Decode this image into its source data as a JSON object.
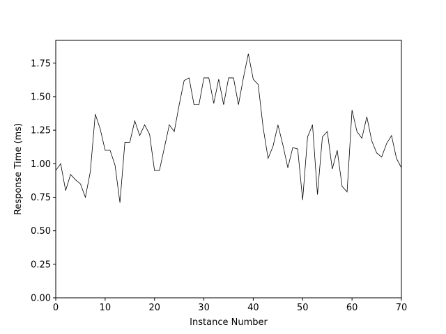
{
  "chart_data": {
    "type": "line",
    "title": "",
    "xlabel": "Instance Number",
    "ylabel": "Response Time (ms)",
    "xlim": [
      0,
      70
    ],
    "ylim": [
      0,
      1.92
    ],
    "xticks": [
      0,
      10,
      20,
      30,
      40,
      50,
      60,
      70
    ],
    "xtick_labels": [
      "0",
      "10",
      "20",
      "30",
      "40",
      "50",
      "60",
      "70"
    ],
    "yticks": [
      0,
      0.25,
      0.5,
      0.75,
      1.0,
      1.25,
      1.5,
      1.75
    ],
    "ytick_labels": [
      "0.00",
      "0.25",
      "0.50",
      "0.75",
      "1.00",
      "1.25",
      "1.50",
      "1.75"
    ],
    "grid": false,
    "legend": "none",
    "line_color": "#000000",
    "series": [
      {
        "x": [
          0,
          1,
          2,
          3,
          4,
          5,
          6,
          7,
          8,
          9,
          10,
          11,
          12,
          13,
          14,
          15,
          16,
          17,
          18,
          19,
          20,
          21,
          22,
          23,
          24,
          25,
          26,
          27,
          28,
          29,
          30,
          31,
          32,
          33,
          34,
          35,
          36,
          37,
          38,
          39,
          40,
          41,
          42,
          43,
          44,
          45,
          46,
          47,
          48,
          49,
          50,
          51,
          52,
          53,
          54,
          55,
          56,
          57,
          58,
          59,
          60,
          61,
          62,
          63,
          64,
          65,
          66,
          67,
          68,
          69,
          70
        ],
        "values": [
          0.95,
          1.0,
          0.8,
          0.92,
          0.88,
          0.85,
          0.75,
          0.94,
          1.37,
          1.26,
          1.1,
          1.1,
          0.99,
          0.71,
          1.16,
          1.16,
          1.32,
          1.21,
          1.29,
          1.22,
          0.95,
          0.95,
          1.12,
          1.29,
          1.24,
          1.44,
          1.62,
          1.64,
          1.44,
          1.44,
          1.64,
          1.64,
          1.45,
          1.63,
          1.44,
          1.64,
          1.64,
          1.44,
          1.64,
          1.82,
          1.63,
          1.59,
          1.27,
          1.04,
          1.13,
          1.29,
          1.14,
          0.97,
          1.12,
          1.11,
          0.73,
          1.2,
          1.29,
          0.77,
          1.2,
          1.24,
          0.96,
          1.1,
          0.83,
          0.79,
          1.4,
          1.24,
          1.19,
          1.35,
          1.17,
          1.08,
          1.05,
          1.15,
          1.21,
          1.04,
          0.97
        ]
      }
    ]
  }
}
